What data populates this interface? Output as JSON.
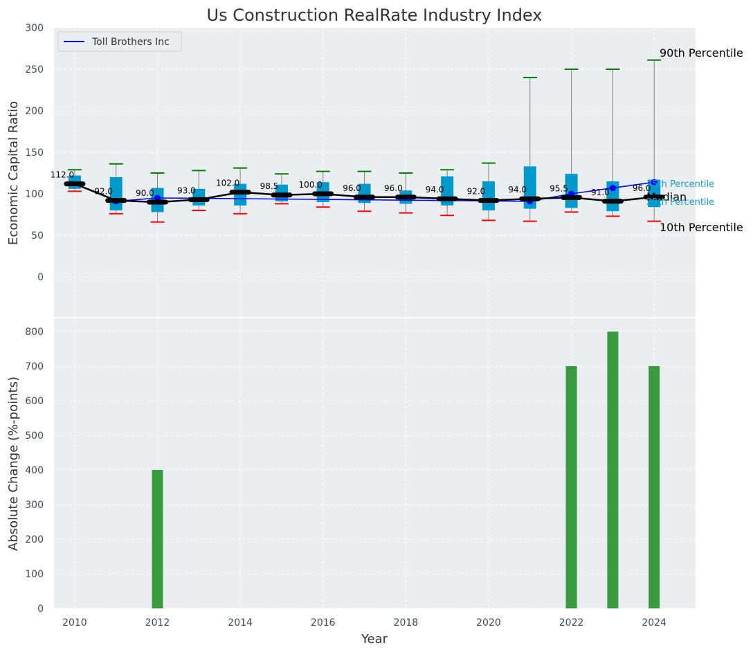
{
  "chart_data": [
    {
      "type": "box",
      "title": "Us Construction RealRate Industry Index",
      "xlabel": "",
      "ylabel": "Economic Capital Ratio",
      "ylim": [
        -50,
        300
      ],
      "yticks": [
        "0",
        "50",
        "100",
        "150",
        "200",
        "250",
        "300"
      ],
      "grid": true,
      "legend_position": "top-left",
      "x": [
        2010,
        2011,
        2012,
        2013,
        2014,
        2015,
        2016,
        2017,
        2018,
        2019,
        2020,
        2021,
        2022,
        2023,
        2024
      ],
      "p10": [
        103,
        76,
        66,
        80,
        76,
        88,
        84,
        79,
        77,
        74,
        68,
        67,
        78,
        73,
        67
      ],
      "q1": [
        106,
        80,
        78,
        86,
        86,
        91,
        90,
        89,
        88,
        86,
        80,
        82,
        83,
        79,
        84
      ],
      "median": [
        112,
        92,
        90,
        93,
        102,
        98.5,
        100,
        96,
        96,
        94,
        92,
        94,
        95.5,
        91,
        96
      ],
      "q3": [
        122,
        120,
        107,
        106,
        112,
        111,
        114,
        112,
        104,
        121,
        115,
        133,
        124,
        115,
        117
      ],
      "p90": [
        129,
        136,
        125,
        128,
        131,
        124,
        127,
        127,
        125,
        129,
        137,
        240,
        250,
        250,
        261
      ],
      "median_labels": [
        "112.0",
        "92.0",
        "90.0",
        "93.0",
        "102.0",
        "98.5",
        "100.0",
        "96.0",
        "96.0",
        "94.0",
        "92.0",
        "94.0",
        "95.5",
        "91.0",
        "96.0"
      ],
      "series": [
        {
          "name": "Toll Brothers Inc",
          "color": "#0000ff",
          "x": [
            2011,
            2012,
            2021,
            2022,
            2023,
            2024
          ],
          "values": [
            91,
            95,
            91,
            100,
            107,
            114
          ]
        }
      ],
      "annotations": {
        "p90": "90th Percentile",
        "p75": "75th Percentile",
        "median": "Median",
        "p25": "25th Percentile",
        "p10": "10th Percentile"
      },
      "colors": {
        "box": "#0099cc",
        "median_line": "#000000",
        "whisker": "#808080",
        "cap_top": "#008000",
        "cap_bottom": "#ff0000",
        "background": "#eaeef0",
        "grid": "#ffffff"
      }
    },
    {
      "type": "bar",
      "xlabel": "Year",
      "ylabel": "Absolute Change (%-points)",
      "ylim": [
        0,
        850
      ],
      "yticks": [
        "0",
        "100",
        "200",
        "300",
        "400",
        "500",
        "600",
        "700",
        "800"
      ],
      "xticks": [
        "2010",
        "2012",
        "2014",
        "2016",
        "2018",
        "2020",
        "2022",
        "2024"
      ],
      "xlim": [
        2009.5,
        2025
      ],
      "grid": true,
      "x": [
        2012,
        2022,
        2023,
        2024
      ],
      "values": [
        400,
        700,
        800,
        700
      ],
      "color": "#3a9a3e"
    }
  ]
}
